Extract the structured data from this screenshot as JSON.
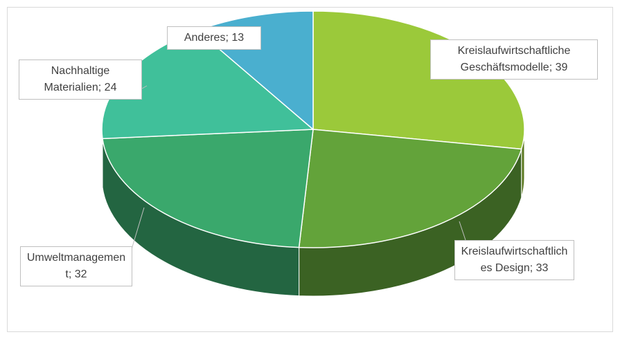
{
  "chart_data": {
    "type": "pie3d",
    "values": [
      39,
      33,
      32,
      24,
      13
    ],
    "value_labels": [
      "Kreislaufwirtschaftliche Geschäftsmodelle; 39",
      "Kreislaufwirtschaftliches Design; 33",
      "Umweltmanagement; 32",
      "Nachhaltige Materialien; 24",
      "Anderes; 13"
    ],
    "colors": [
      "#9bc93a",
      "#63a33a",
      "#3aa86c",
      "#40c09a",
      "#4aafcf"
    ]
  }
}
